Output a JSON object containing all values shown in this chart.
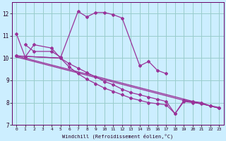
{
  "xlabel": "Windchill (Refroidissement éolien,°C)",
  "bg_color": "#cceeff",
  "grid_color": "#99cccc",
  "line_color": "#993399",
  "xlim": [
    -0.5,
    23.5
  ],
  "ylim": [
    7.0,
    12.5
  ],
  "yticks": [
    7,
    8,
    9,
    10,
    11,
    12
  ],
  "xticks": [
    0,
    1,
    2,
    3,
    4,
    5,
    6,
    7,
    8,
    9,
    10,
    11,
    12,
    13,
    14,
    15,
    16,
    17,
    18,
    19,
    20,
    21,
    22,
    23
  ],
  "line1_x": [
    0,
    1,
    2,
    4,
    5,
    7,
    8,
    9,
    10,
    11,
    12,
    14,
    15,
    16,
    17
  ],
  "line1_y": [
    11.1,
    10.05,
    10.6,
    10.45,
    10.0,
    12.1,
    11.85,
    12.05,
    12.05,
    11.95,
    11.8,
    9.65,
    9.85,
    9.45,
    9.3
  ],
  "line2_x": [
    1,
    2,
    4,
    5
  ],
  "line2_y": [
    10.6,
    10.3,
    10.3,
    10.05
  ],
  "line3_x": [
    0,
    5,
    6,
    7,
    8,
    9,
    10,
    11,
    12,
    13,
    14,
    15,
    16,
    17,
    18,
    19,
    20,
    21,
    22,
    23
  ],
  "line3_y": [
    10.1,
    10.0,
    9.75,
    9.55,
    9.35,
    9.15,
    8.95,
    8.8,
    8.6,
    8.45,
    8.35,
    8.25,
    8.15,
    8.05,
    7.5,
    8.05,
    8.0,
    7.95,
    7.85,
    7.75
  ],
  "line4_x": [
    0,
    5,
    6,
    7,
    8,
    9,
    10,
    11,
    12,
    13,
    14,
    15,
    16,
    17,
    18,
    19,
    20,
    21,
    22,
    23
  ],
  "line4_y": [
    10.1,
    10.0,
    9.6,
    9.3,
    9.05,
    8.85,
    8.65,
    8.5,
    8.35,
    8.2,
    8.1,
    8.0,
    7.95,
    7.9,
    7.5,
    8.1,
    8.05,
    8.0,
    7.85,
    7.75
  ],
  "regline_x": [
    0,
    23
  ],
  "regline_y": [
    10.1,
    7.75
  ],
  "regline2_x": [
    0,
    19,
    23
  ],
  "regline2_y": [
    10.05,
    8.1,
    7.78
  ]
}
